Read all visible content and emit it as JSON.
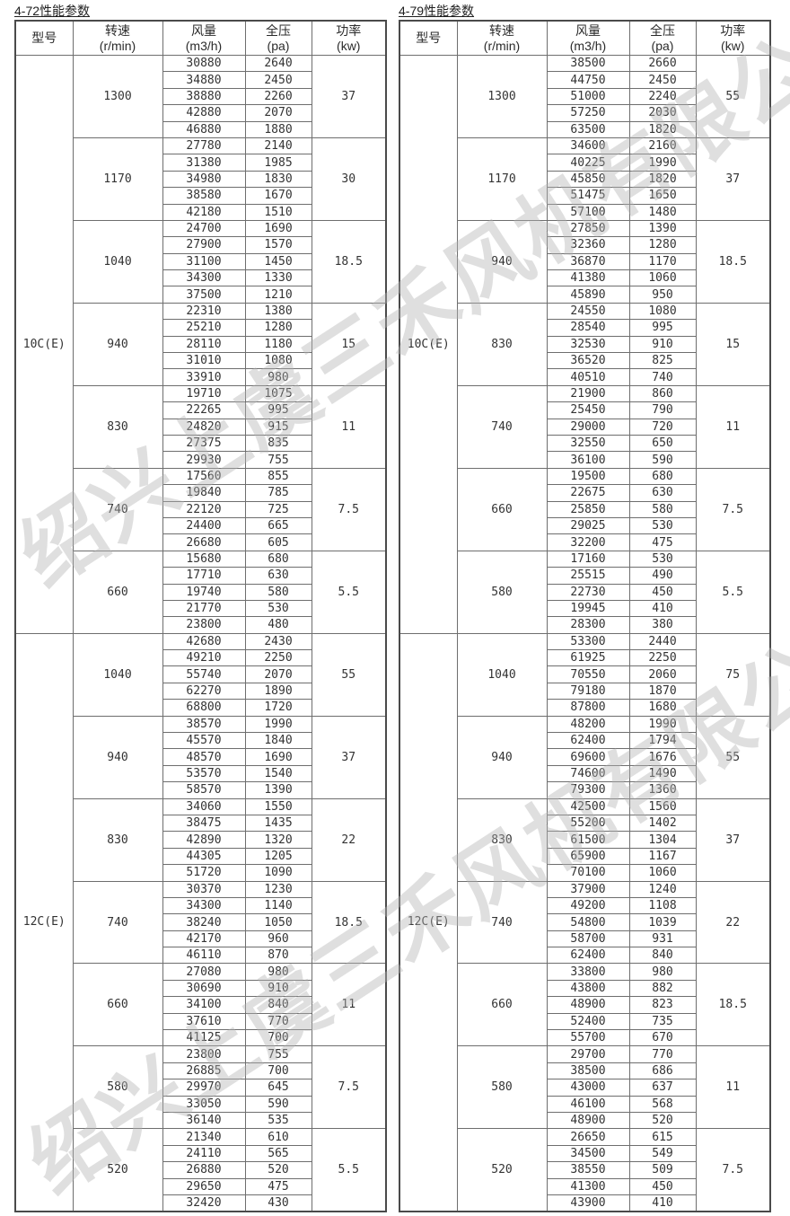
{
  "watermark": {
    "text": "绍兴上虞三禾风机有限公司",
    "color": "#b5b5b5"
  },
  "colors": {
    "grid": "#6e6e6e",
    "text": "#333333",
    "background": "#ffffff"
  },
  "tables": [
    {
      "title": "4-72性能参数",
      "columns": [
        {
          "key": "model",
          "label": "型号",
          "unit": ""
        },
        {
          "key": "speed",
          "label": "转速",
          "unit": "(r/min)"
        },
        {
          "key": "flow",
          "label": "风量",
          "unit": "(m3/h)"
        },
        {
          "key": "pressure",
          "label": "全压",
          "unit": "(pa)"
        },
        {
          "key": "power",
          "label": "功率",
          "unit": "(kw)"
        }
      ],
      "sections": [
        {
          "model": "10C(E)",
          "groups": [
            {
              "speed": "1300",
              "power": "37",
              "rows": [
                [
                  30880,
                  2640
                ],
                [
                  34880,
                  2450
                ],
                [
                  38880,
                  2260
                ],
                [
                  42880,
                  2070
                ],
                [
                  46880,
                  1880
                ]
              ]
            },
            {
              "speed": "1170",
              "power": "30",
              "rows": [
                [
                  27780,
                  2140
                ],
                [
                  31380,
                  1985
                ],
                [
                  34980,
                  1830
                ],
                [
                  38580,
                  1670
                ],
                [
                  42180,
                  1510
                ]
              ]
            },
            {
              "speed": "1040",
              "power": "18.5",
              "rows": [
                [
                  24700,
                  1690
                ],
                [
                  27900,
                  1570
                ],
                [
                  31100,
                  1450
                ],
                [
                  34300,
                  1330
                ],
                [
                  37500,
                  1210
                ]
              ]
            },
            {
              "speed": "940",
              "power": "15",
              "rows": [
                [
                  22310,
                  1380
                ],
                [
                  25210,
                  1280
                ],
                [
                  28110,
                  1180
                ],
                [
                  31010,
                  1080
                ],
                [
                  33910,
                  980
                ]
              ]
            },
            {
              "speed": "830",
              "power": "11",
              "rows": [
                [
                  19710,
                  1075
                ],
                [
                  22265,
                  995
                ],
                [
                  24820,
                  915
                ],
                [
                  27375,
                  835
                ],
                [
                  29930,
                  755
                ]
              ]
            },
            {
              "speed": "740",
              "power": "7.5",
              "rows": [
                [
                  17560,
                  855
                ],
                [
                  19840,
                  785
                ],
                [
                  22120,
                  725
                ],
                [
                  24400,
                  665
                ],
                [
                  26680,
                  605
                ]
              ]
            },
            {
              "speed": "660",
              "power": "5.5",
              "rows": [
                [
                  15680,
                  680
                ],
                [
                  17710,
                  630
                ],
                [
                  19740,
                  580
                ],
                [
                  21770,
                  530
                ],
                [
                  23800,
                  480
                ]
              ]
            }
          ]
        },
        {
          "model": "12C(E)",
          "groups": [
            {
              "speed": "1040",
              "power": "55",
              "rows": [
                [
                  42680,
                  2430
                ],
                [
                  49210,
                  2250
                ],
                [
                  55740,
                  2070
                ],
                [
                  62270,
                  1890
                ],
                [
                  68800,
                  1720
                ]
              ]
            },
            {
              "speed": "940",
              "power": "37",
              "rows": [
                [
                  38570,
                  1990
                ],
                [
                  45570,
                  1840
                ],
                [
                  48570,
                  1690
                ],
                [
                  53570,
                  1540
                ],
                [
                  58570,
                  1390
                ]
              ]
            },
            {
              "speed": "830",
              "power": "22",
              "rows": [
                [
                  34060,
                  1550
                ],
                [
                  38475,
                  1435
                ],
                [
                  42890,
                  1320
                ],
                [
                  44305,
                  1205
                ],
                [
                  51720,
                  1090
                ]
              ]
            },
            {
              "speed": "740",
              "power": "18.5",
              "rows": [
                [
                  30370,
                  1230
                ],
                [
                  34300,
                  1140
                ],
                [
                  38240,
                  1050
                ],
                [
                  42170,
                  960
                ],
                [
                  46110,
                  870
                ]
              ]
            },
            {
              "speed": "660",
              "power": "11",
              "rows": [
                [
                  27080,
                  980
                ],
                [
                  30690,
                  910
                ],
                [
                  34100,
                  840
                ],
                [
                  37610,
                  770
                ],
                [
                  41125,
                  700
                ]
              ]
            },
            {
              "speed": "580",
              "power": "7.5",
              "rows": [
                [
                  23800,
                  755
                ],
                [
                  26885,
                  700
                ],
                [
                  29970,
                  645
                ],
                [
                  33050,
                  590
                ],
                [
                  36140,
                  535
                ]
              ]
            },
            {
              "speed": "520",
              "power": "5.5",
              "rows": [
                [
                  21340,
                  610
                ],
                [
                  24110,
                  565
                ],
                [
                  26880,
                  520
                ],
                [
                  29650,
                  475
                ],
                [
                  32420,
                  430
                ]
              ]
            }
          ]
        }
      ]
    },
    {
      "title": "4-79性能参数",
      "columns": [
        {
          "key": "model",
          "label": "型号",
          "unit": ""
        },
        {
          "key": "speed",
          "label": "转速",
          "unit": "(r/min)"
        },
        {
          "key": "flow",
          "label": "风量",
          "unit": "(m3/h)"
        },
        {
          "key": "pressure",
          "label": "全压",
          "unit": "(pa)"
        },
        {
          "key": "power",
          "label": "功率",
          "unit": "(kw)"
        }
      ],
      "sections": [
        {
          "model": "10C(E)",
          "groups": [
            {
              "speed": "1300",
              "power": "55",
              "rows": [
                [
                  38500,
                  2660
                ],
                [
                  44750,
                  2450
                ],
                [
                  51000,
                  2240
                ],
                [
                  57250,
                  2030
                ],
                [
                  63500,
                  1820
                ]
              ]
            },
            {
              "speed": "1170",
              "power": "37",
              "rows": [
                [
                  34600,
                  2160
                ],
                [
                  40225,
                  1990
                ],
                [
                  45850,
                  1820
                ],
                [
                  51475,
                  1650
                ],
                [
                  57100,
                  1480
                ]
              ]
            },
            {
              "speed": "940",
              "power": "18.5",
              "rows": [
                [
                  27850,
                  1390
                ],
                [
                  32360,
                  1280
                ],
                [
                  36870,
                  1170
                ],
                [
                  41380,
                  1060
                ],
                [
                  45890,
                  950
                ]
              ]
            },
            {
              "speed": "830",
              "power": "15",
              "rows": [
                [
                  24550,
                  1080
                ],
                [
                  28540,
                  995
                ],
                [
                  32530,
                  910
                ],
                [
                  36520,
                  825
                ],
                [
                  40510,
                  740
                ]
              ]
            },
            {
              "speed": "740",
              "power": "11",
              "rows": [
                [
                  21900,
                  860
                ],
                [
                  25450,
                  790
                ],
                [
                  29000,
                  720
                ],
                [
                  32550,
                  650
                ],
                [
                  36100,
                  590
                ]
              ]
            },
            {
              "speed": "660",
              "power": "7.5",
              "rows": [
                [
                  19500,
                  680
                ],
                [
                  22675,
                  630
                ],
                [
                  25850,
                  580
                ],
                [
                  29025,
                  530
                ],
                [
                  32200,
                  475
                ]
              ]
            },
            {
              "speed": "580",
              "power": "5.5",
              "rows": [
                [
                  17160,
                  530
                ],
                [
                  25515,
                  490
                ],
                [
                  22730,
                  450
                ],
                [
                  19945,
                  410
                ],
                [
                  28300,
                  380
                ]
              ]
            }
          ]
        },
        {
          "model": "12C(E)",
          "groups": [
            {
              "speed": "1040",
              "power": "75",
              "rows": [
                [
                  53300,
                  2440
                ],
                [
                  61925,
                  2250
                ],
                [
                  70550,
                  2060
                ],
                [
                  79180,
                  1870
                ],
                [
                  87800,
                  1680
                ]
              ]
            },
            {
              "speed": "940",
              "power": "55",
              "rows": [
                [
                  48200,
                  1990
                ],
                [
                  62400,
                  1794
                ],
                [
                  69600,
                  1676
                ],
                [
                  74600,
                  1490
                ],
                [
                  79300,
                  1360
                ]
              ]
            },
            {
              "speed": "830",
              "power": "37",
              "rows": [
                [
                  42500,
                  1560
                ],
                [
                  55200,
                  1402
                ],
                [
                  61500,
                  1304
                ],
                [
                  65900,
                  1167
                ],
                [
                  70100,
                  1060
                ]
              ]
            },
            {
              "speed": "740",
              "power": "22",
              "rows": [
                [
                  37900,
                  1240
                ],
                [
                  49200,
                  1108
                ],
                [
                  54800,
                  1039
                ],
                [
                  58700,
                  931
                ],
                [
                  62400,
                  840
                ]
              ]
            },
            {
              "speed": "660",
              "power": "18.5",
              "rows": [
                [
                  33800,
                  980
                ],
                [
                  43800,
                  882
                ],
                [
                  48900,
                  823
                ],
                [
                  52400,
                  735
                ],
                [
                  55700,
                  670
                ]
              ]
            },
            {
              "speed": "580",
              "power": "11",
              "rows": [
                [
                  29700,
                  770
                ],
                [
                  38500,
                  686
                ],
                [
                  43000,
                  637
                ],
                [
                  46100,
                  568
                ],
                [
                  48900,
                  520
                ]
              ]
            },
            {
              "speed": "520",
              "power": "7.5",
              "rows": [
                [
                  26650,
                  615
                ],
                [
                  34500,
                  549
                ],
                [
                  38550,
                  509
                ],
                [
                  41300,
                  450
                ],
                [
                  43900,
                  410
                ]
              ]
            }
          ]
        }
      ]
    }
  ]
}
